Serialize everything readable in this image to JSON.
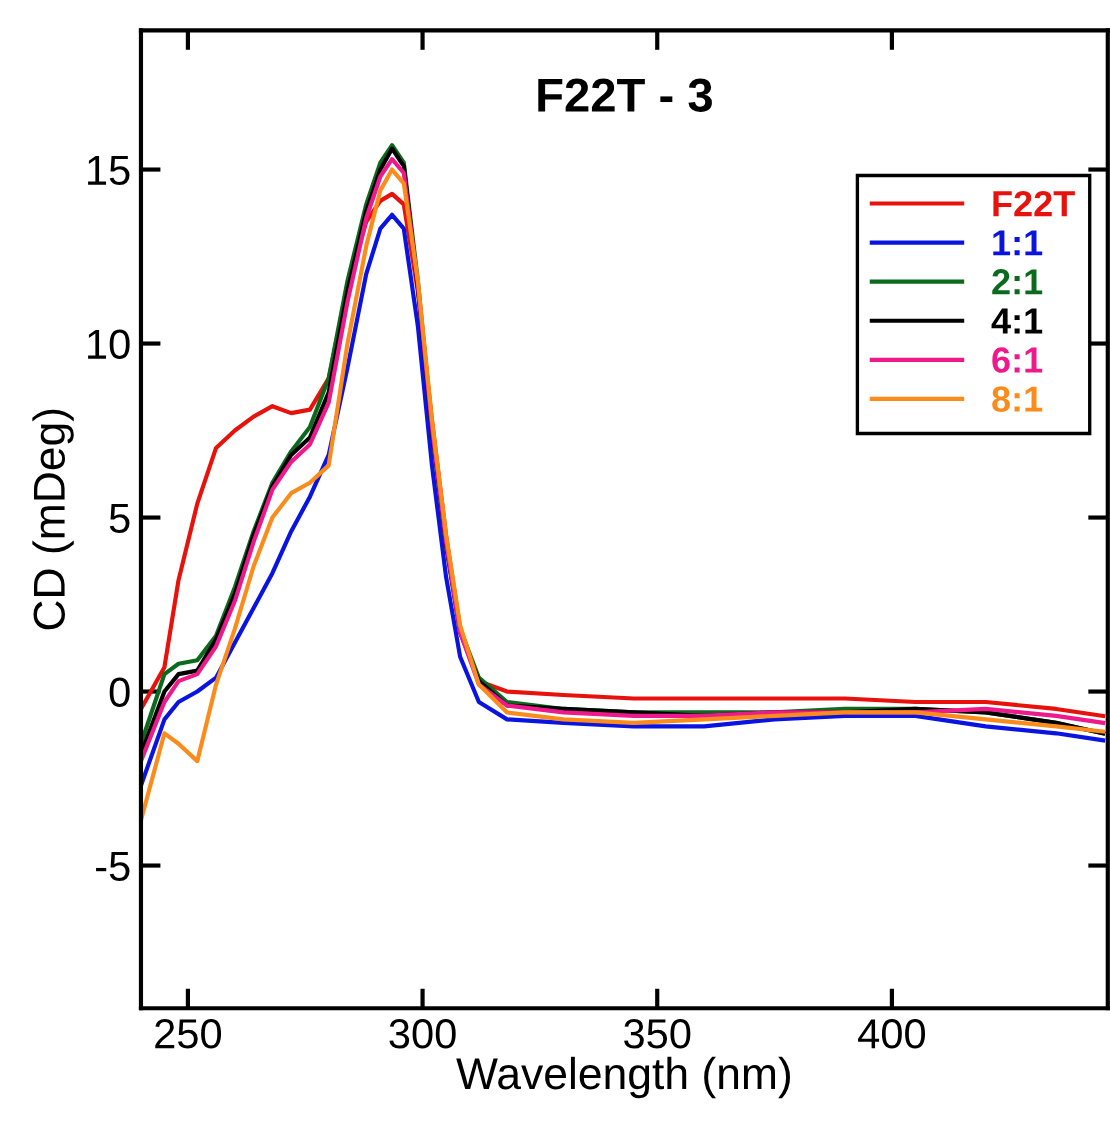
{
  "chart_data": {
    "type": "line",
    "title": "F22T - 3",
    "xlabel": "Wavelength (nm)",
    "ylabel": "CD (mDeg)",
    "x": [
      240,
      245,
      248,
      252,
      256,
      260,
      264,
      268,
      272,
      276,
      280,
      284,
      288,
      291,
      293.5,
      296,
      299,
      302,
      305,
      308,
      312,
      318,
      330,
      345,
      360,
      375,
      390,
      405,
      420,
      435,
      445
    ],
    "series": [
      {
        "name": "F22T",
        "color": "#e8120c",
        "values": [
          -0.5,
          0.7,
          3.2,
          5.4,
          7.0,
          7.5,
          7.9,
          8.2,
          8.0,
          8.1,
          9.0,
          11.6,
          13.5,
          14.1,
          14.3,
          14.0,
          11.5,
          7.8,
          4.5,
          1.8,
          0.3,
          0.0,
          -0.1,
          -0.2,
          -0.2,
          -0.2,
          -0.2,
          -0.3,
          -0.3,
          -0.5,
          -0.7
        ]
      },
      {
        "name": "1:1",
        "color": "#0a14e0",
        "values": [
          -2.7,
          -0.8,
          -0.3,
          0.0,
          0.4,
          1.4,
          2.4,
          3.4,
          4.6,
          5.6,
          6.8,
          9.3,
          12.0,
          13.3,
          13.7,
          13.3,
          10.5,
          6.5,
          3.3,
          1.0,
          -0.3,
          -0.8,
          -0.9,
          -1.0,
          -1.0,
          -0.8,
          -0.7,
          -0.7,
          -1.0,
          -1.2,
          -1.4
        ]
      },
      {
        "name": "2:1",
        "color": "#0b6a1e",
        "values": [
          -1.5,
          0.5,
          0.8,
          0.9,
          1.6,
          3.0,
          4.6,
          6.0,
          6.9,
          7.6,
          9.0,
          11.8,
          14.0,
          15.2,
          15.7,
          15.2,
          11.8,
          7.6,
          4.3,
          1.8,
          0.4,
          -0.3,
          -0.5,
          -0.6,
          -0.6,
          -0.6,
          -0.5,
          -0.5,
          -0.6,
          -0.9,
          -1.2
        ]
      },
      {
        "name": "4:1",
        "color": "#000000",
        "values": [
          -1.8,
          0.0,
          0.5,
          0.6,
          1.5,
          2.8,
          4.5,
          5.9,
          6.8,
          7.3,
          8.6,
          11.5,
          13.8,
          15.0,
          15.6,
          15.1,
          11.6,
          7.5,
          4.2,
          1.7,
          0.3,
          -0.4,
          -0.5,
          -0.6,
          -0.7,
          -0.6,
          -0.6,
          -0.5,
          -0.6,
          -0.9,
          -1.2
        ]
      },
      {
        "name": "6:1",
        "color": "#ee1a8c",
        "values": [
          -2.0,
          -0.3,
          0.3,
          0.5,
          1.3,
          2.6,
          4.3,
          5.8,
          6.6,
          7.1,
          8.3,
          11.2,
          13.6,
          14.8,
          15.3,
          14.9,
          11.7,
          7.6,
          4.3,
          1.7,
          0.2,
          -0.4,
          -0.6,
          -0.7,
          -0.7,
          -0.6,
          -0.6,
          -0.6,
          -0.5,
          -0.7,
          -0.9
        ]
      },
      {
        "name": "8:1",
        "color": "#fb8c1c",
        "values": [
          -3.7,
          -1.2,
          -1.5,
          -2.0,
          0.2,
          1.8,
          3.6,
          5.0,
          5.7,
          6.0,
          6.5,
          10.0,
          12.8,
          14.4,
          15.0,
          14.6,
          11.8,
          7.8,
          4.5,
          1.9,
          0.2,
          -0.6,
          -0.8,
          -0.9,
          -0.8,
          -0.7,
          -0.6,
          -0.6,
          -0.8,
          -1.0,
          -1.15
        ]
      }
    ],
    "xlim": [
      240,
      446
    ],
    "ylim": [
      -9.1,
      19.0
    ],
    "xticks": [
      250,
      300,
      350,
      400
    ],
    "yticks": [
      -5,
      0,
      5,
      10,
      15
    ],
    "legend": "top right",
    "grid": false
  }
}
